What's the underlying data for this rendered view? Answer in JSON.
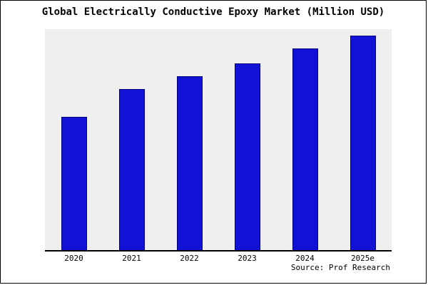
{
  "chart_data": {
    "type": "bar",
    "title": "Global Electrically Conductive Epoxy Market (Million USD)",
    "categories": [
      "2020",
      "2021",
      "2022",
      "2023",
      "2024",
      "2025e"
    ],
    "values": [
      62,
      75,
      81,
      87,
      94,
      100
    ],
    "xlabel": "",
    "ylabel": "",
    "ylim": [
      0,
      103
    ],
    "grid": false,
    "legend_position": "none",
    "bar_color": "#1212d6",
    "bar_border_color": "#000080",
    "plot_background": "#efefef"
  },
  "footer": {
    "source": "Source: Prof Research"
  }
}
